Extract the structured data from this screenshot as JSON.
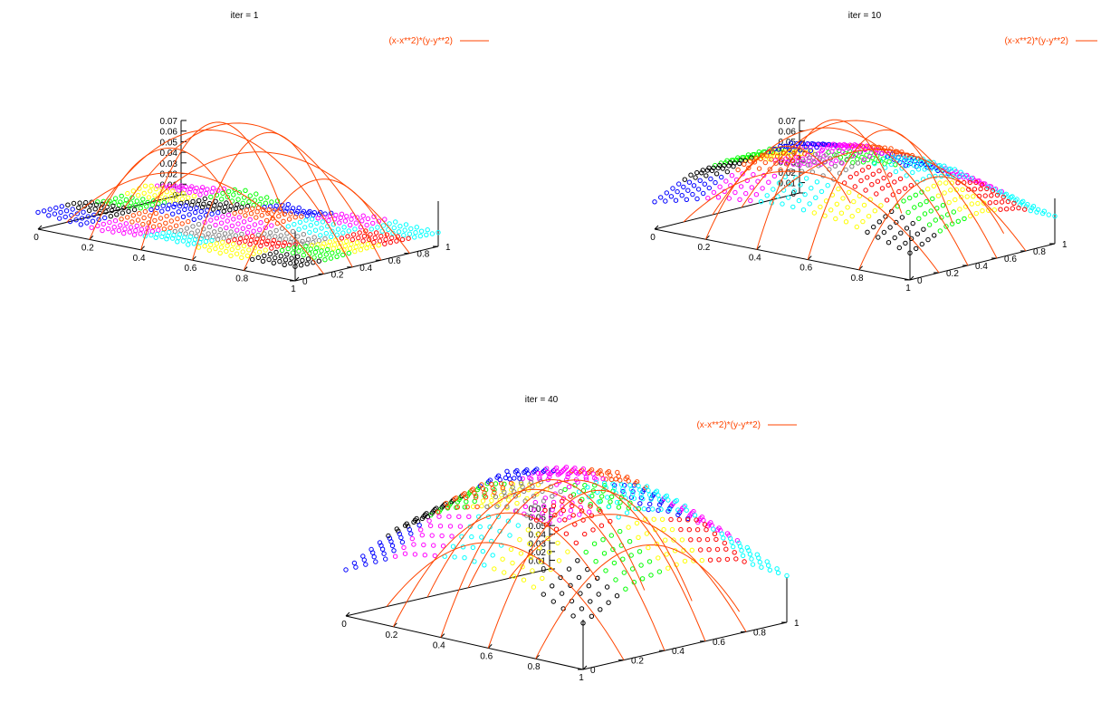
{
  "page": {
    "background": "#ffffff"
  },
  "colors": {
    "function_line": "#ff4500",
    "point_palette": [
      "#0000ff",
      "#000000",
      "#00ff00",
      "#ff00ff",
      "#ff4500",
      "#808080",
      "#00ffff",
      "#ffff00",
      "#ff0000"
    ]
  },
  "chart_data": [
    {
      "type": "surface3d",
      "title": "iter = 1",
      "legend": {
        "label": "(x-x**2)*(y-y**2)",
        "placement": "top-right"
      },
      "x_ticks": [
        "0",
        "0.2",
        "0.4",
        "0.6",
        "0.8",
        "1"
      ],
      "y_ticks": [
        "0",
        "0.2",
        "0.4",
        "0.6",
        "0.8",
        "1"
      ],
      "z_ticks": [
        "0",
        "0.01",
        "0.02",
        "0.03",
        "0.04",
        "0.05",
        "0.06",
        "0.07"
      ],
      "zlim": [
        0,
        0.07
      ],
      "mesh_values": [
        [
          0.0092,
          0.0063,
          0.0088,
          0.0066,
          0.0078
        ],
        [
          0.0094,
          0.0073,
          0.0059,
          0.0084,
          0.0076
        ],
        [
          0.006,
          0.0099,
          0.0076,
          0.0051,
          0.0085
        ],
        [
          0.0095,
          0.007,
          0.0099,
          0.007,
          0.0084
        ],
        [
          0.0049,
          0.0094,
          0.005,
          0.0092,
          0.0076
        ]
      ],
      "patch_colors": [
        [
          "#0000ff",
          "#ff00ff",
          "#00ffff",
          "#ffff00",
          "#000000"
        ],
        [
          "#000000",
          "#ff4500",
          "#808080",
          "#ff0000",
          "#00ff00"
        ],
        [
          "#00ff00",
          "#0000ff",
          "#ff00ff",
          "#808080",
          "#ffff00"
        ],
        [
          "#ffff00",
          "#000000",
          "#ff4500",
          "#00ffff",
          "#ff0000"
        ],
        [
          "#ff00ff",
          "#00ff00",
          "#0000ff",
          "#ff00ff",
          "#00ffff"
        ]
      ]
    },
    {
      "type": "surface3d",
      "title": "iter = 10",
      "legend": {
        "label": "(x-x**2)*(y-y**2)",
        "placement": "top-right"
      },
      "x_ticks": [
        "0",
        "0.2",
        "0.4",
        "0.6",
        "0.8",
        "1"
      ],
      "y_ticks": [
        "0",
        "0.2",
        "0.4",
        "0.6",
        "0.8",
        "1"
      ],
      "z_ticks": [
        "0",
        "0.01",
        "0.02",
        "0.03",
        "0.04",
        "0.05",
        "0.06",
        "0.07"
      ],
      "zlim": [
        0,
        0.07
      ],
      "mesh_values": [
        [
          0.0148,
          0.0241,
          0.0274,
          0.0246,
          0.0146
        ],
        [
          0.0244,
          0.0383,
          0.0432,
          0.0378,
          0.024
        ],
        [
          0.0273,
          0.0436,
          0.0496,
          0.0432,
          0.0276
        ],
        [
          0.024,
          0.0377,
          0.0427,
          0.0382,
          0.0242
        ],
        [
          0.0149,
          0.0236,
          0.0276,
          0.024,
          0.0149
        ]
      ],
      "patch_colors": [
        [
          "#0000ff",
          "#ff00ff",
          "#00ffff",
          "#ffff00",
          "#000000"
        ],
        [
          "#000000",
          "#ff4500",
          "#808080",
          "#ff0000",
          "#00ff00"
        ],
        [
          "#00ff00",
          "#0000ff",
          "#ff00ff",
          "#00ffff",
          "#ffff00"
        ],
        [
          "#ffff00",
          "#ff00ff",
          "#ff4500",
          "#00ffff",
          "#ff0000"
        ],
        [
          "#ff00ff",
          "#00ff00",
          "#0000ff",
          "#ff00ff",
          "#00ffff"
        ]
      ]
    },
    {
      "type": "surface3d",
      "title": "iter = 40",
      "legend": {
        "label": "(x-x**2)*(y-y**2)",
        "placement": "top-right"
      },
      "x_ticks": [
        "0",
        "0.2",
        "0.4",
        "0.6",
        "0.8",
        "1"
      ],
      "y_ticks": [
        "0",
        "0.2",
        "0.4",
        "0.6",
        "0.8",
        "1"
      ],
      "z_ticks": [
        "0",
        "0.01",
        "0.02",
        "0.03",
        "0.04",
        "0.05",
        "0.06",
        "0.07"
      ],
      "zlim": [
        0,
        0.07
      ],
      "mesh_values": [
        [
          0.0208,
          0.0341,
          0.0383,
          0.0343,
          0.0209
        ],
        [
          0.0339,
          0.0539,
          0.0607,
          0.054,
          0.034
        ],
        [
          0.038,
          0.0606,
          0.0685,
          0.0606,
          0.0382
        ],
        [
          0.0341,
          0.0538,
          0.0608,
          0.0542,
          0.0339
        ],
        [
          0.0208,
          0.0341,
          0.0381,
          0.034,
          0.021
        ]
      ],
      "patch_colors": [
        [
          "#0000ff",
          "#ff00ff",
          "#00ffff",
          "#ffff00",
          "#000000"
        ],
        [
          "#000000",
          "#ff4500",
          "#808080",
          "#ff0000",
          "#00ff00"
        ],
        [
          "#00ff00",
          "#0000ff",
          "#ff00ff",
          "#00ffff",
          "#ffff00"
        ],
        [
          "#ffff00",
          "#ff00ff",
          "#ff4500",
          "#00ffff",
          "#ff0000"
        ],
        [
          "#ff00ff",
          "#00ff00",
          "#0000ff",
          "#ff00ff",
          "#00ffff"
        ]
      ]
    }
  ]
}
